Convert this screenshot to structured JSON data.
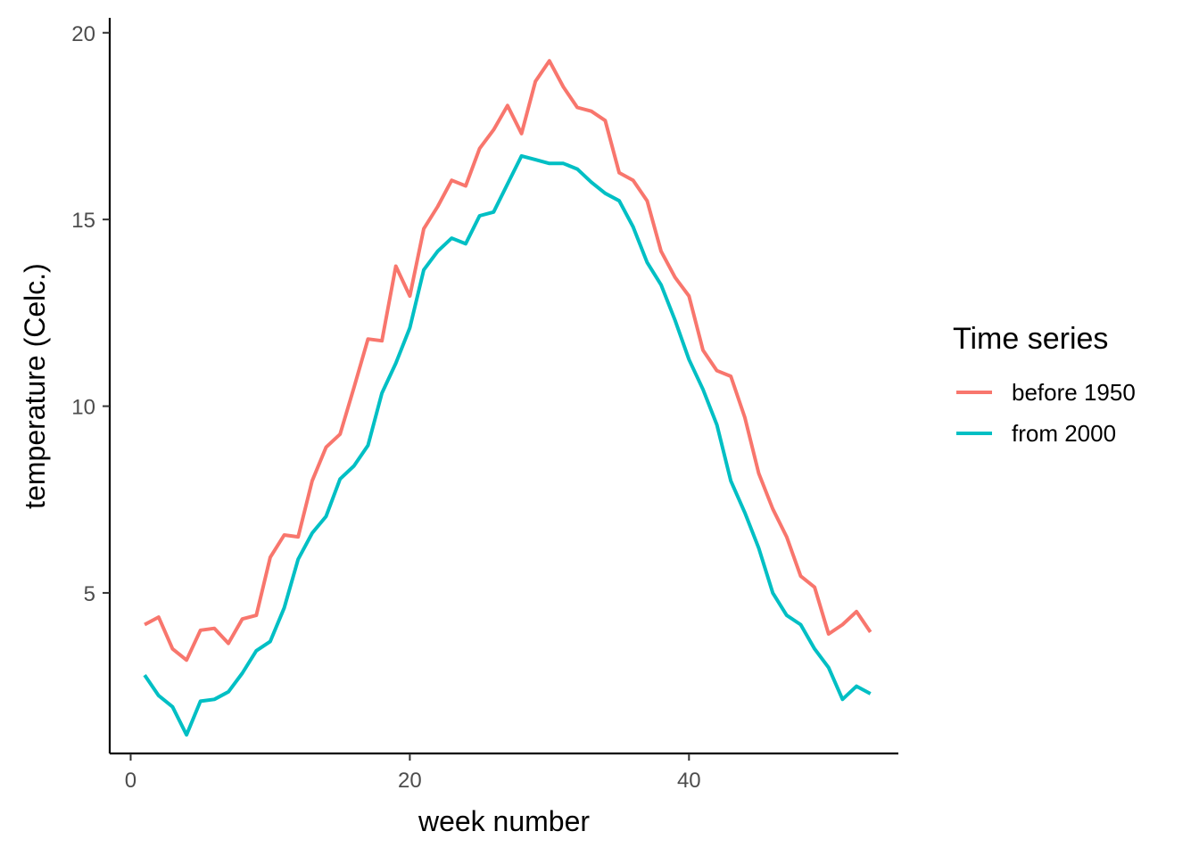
{
  "chart_data": {
    "type": "line",
    "title": "",
    "xlabel": "week number",
    "ylabel": "temperature (Celc.)",
    "xlim": [
      -1.5,
      55
    ],
    "ylim": [
      0.7,
      20.4
    ],
    "xticks": [
      0,
      20,
      40
    ],
    "yticks": [
      5,
      10,
      15,
      20
    ],
    "grid": false,
    "legend": {
      "title": "Time series",
      "position": "right"
    },
    "x": [
      1,
      2,
      3,
      4,
      5,
      6,
      7,
      8,
      9,
      10,
      11,
      12,
      13,
      14,
      15,
      16,
      17,
      18,
      19,
      20,
      21,
      22,
      23,
      24,
      25,
      26,
      27,
      28,
      29,
      30,
      31,
      32,
      33,
      34,
      35,
      36,
      37,
      38,
      39,
      40,
      41,
      42,
      43,
      44,
      45,
      46,
      47,
      48,
      49,
      50,
      51,
      52,
      53
    ],
    "series": [
      {
        "name": "before 1950",
        "color": "#F8766D",
        "values": [
          4.15,
          4.35,
          3.5,
          3.2,
          4.0,
          4.05,
          3.65,
          4.3,
          4.4,
          5.95,
          6.55,
          6.5,
          8.0,
          8.9,
          9.25,
          10.5,
          11.8,
          11.75,
          13.75,
          12.95,
          14.75,
          15.35,
          16.05,
          15.9,
          16.9,
          17.4,
          18.05,
          17.3,
          18.7,
          19.25,
          18.55,
          18.0,
          17.9,
          17.65,
          16.25,
          16.05,
          15.5,
          14.15,
          13.45,
          12.95,
          11.5,
          10.95,
          10.8,
          9.7,
          8.2,
          7.25,
          6.5,
          5.45,
          5.15,
          3.9,
          4.15,
          4.5,
          3.95
        ]
      },
      {
        "name": "from 2000",
        "color": "#00BFC4",
        "values": [
          2.8,
          2.25,
          1.95,
          1.2,
          2.1,
          2.15,
          2.35,
          2.85,
          3.45,
          3.7,
          4.6,
          5.9,
          6.6,
          7.05,
          8.05,
          8.4,
          8.95,
          10.35,
          11.15,
          12.1,
          13.65,
          14.15,
          14.5,
          14.35,
          15.1,
          15.2,
          15.95,
          16.7,
          16.6,
          16.5,
          16.5,
          16.35,
          16.0,
          15.7,
          15.5,
          14.8,
          13.85,
          13.25,
          12.3,
          11.25,
          10.45,
          9.5,
          8.0,
          7.15,
          6.2,
          5.0,
          4.4,
          4.15,
          3.5,
          3.0,
          2.15,
          2.5,
          2.3
        ]
      }
    ]
  }
}
